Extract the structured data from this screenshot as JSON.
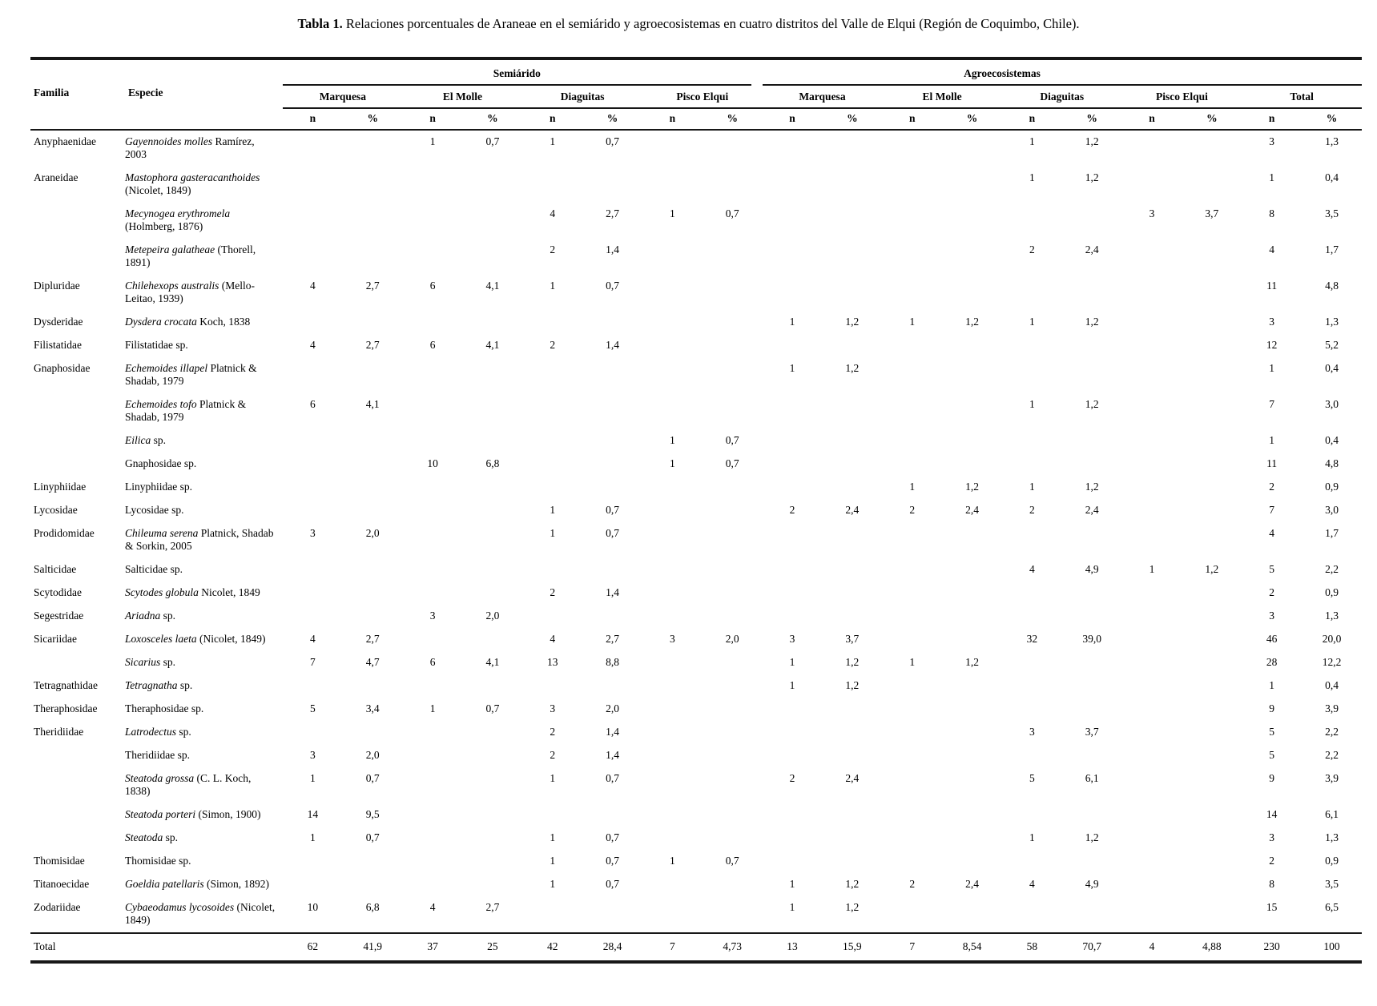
{
  "title": {
    "label_bold": "Tabla 1.",
    "text": " Relaciones porcentuales de Araneae en el semiárido y agroecosistemas en cuatro distritos del Valle de Elqui (Región de Coquimbo, Chile)."
  },
  "header": {
    "familia": "Familia",
    "especie": "Especie",
    "group_semiarido": "Semiárido",
    "group_agro": "Agroecosistemas",
    "districts": [
      "Marquesa",
      "El Molle",
      "Diaguitas",
      "Pisco Elqui",
      "Marquesa",
      "El Molle",
      "Diaguitas",
      "Pisco Elqui",
      "Total"
    ],
    "n": "n",
    "pct": "%"
  },
  "rows": [
    {
      "familia": "Anyphaenidae",
      "sp_it": "Gayennoides molles",
      "sp_reg": " Ramírez, 2003",
      "values": [
        "",
        "",
        "1",
        "0,7",
        "1",
        "0,7",
        "",
        "",
        "",
        "",
        "",
        "",
        "1",
        "1,2",
        "",
        "",
        "3",
        "1,3"
      ]
    },
    {
      "familia": "Araneidae",
      "sp_it": "Mastophora gasteracanthoides",
      "sp_reg": " (Nicolet, 1849)",
      "values": [
        "",
        "",
        "",
        "",
        "",
        "",
        "",
        "",
        "",
        "",
        "",
        "",
        "1",
        "1,2",
        "",
        "",
        "1",
        "0,4"
      ]
    },
    {
      "familia": "",
      "sp_it": "Mecynogea erythromela",
      "sp_reg": " (Holmberg, 1876)",
      "values": [
        "",
        "",
        "",
        "",
        "4",
        "2,7",
        "1",
        "0,7",
        "",
        "",
        "",
        "",
        "",
        "",
        "3",
        "3,7",
        "8",
        "3,5"
      ]
    },
    {
      "familia": "",
      "sp_it": "Metepeira galatheae",
      "sp_reg": " (Thorell, 1891)",
      "values": [
        "",
        "",
        "",
        "",
        "2",
        "1,4",
        "",
        "",
        "",
        "",
        "",
        "",
        "2",
        "2,4",
        "",
        "",
        "4",
        "1,7"
      ]
    },
    {
      "familia": "Dipluridae",
      "sp_it": "Chilehexops australis",
      "sp_reg": " (Mello-Leitao, 1939)",
      "values": [
        "4",
        "2,7",
        "6",
        "4,1",
        "1",
        "0,7",
        "",
        "",
        "",
        "",
        "",
        "",
        "",
        "",
        "",
        "",
        "11",
        "4,8"
      ]
    },
    {
      "familia": "Dysderidae",
      "sp_it": "Dysdera crocata",
      "sp_reg": " Koch, 1838",
      "values": [
        "",
        "",
        "",
        "",
        "",
        "",
        "",
        "",
        "1",
        "1,2",
        "1",
        "1,2",
        "1",
        "1,2",
        "",
        "",
        "3",
        "1,3"
      ]
    },
    {
      "familia": "Filistatidae",
      "sp_it": "",
      "sp_reg": "Filistatidae sp.",
      "values": [
        "4",
        "2,7",
        "6",
        "4,1",
        "2",
        "1,4",
        "",
        "",
        "",
        "",
        "",
        "",
        "",
        "",
        "",
        "",
        "12",
        "5,2"
      ]
    },
    {
      "familia": "Gnaphosidae",
      "sp_it": "Echemoides illapel",
      "sp_reg": " Platnick & Shadab, 1979",
      "values": [
        "",
        "",
        "",
        "",
        "",
        "",
        "",
        "",
        "1",
        "1,2",
        "",
        "",
        "",
        "",
        "",
        "",
        "1",
        "0,4"
      ]
    },
    {
      "familia": "",
      "sp_it": "Echemoides tofo",
      "sp_reg": " Platnick & Shadab, 1979",
      "values": [
        "6",
        "4,1",
        "",
        "",
        "",
        "",
        "",
        "",
        "",
        "",
        "",
        "",
        "1",
        "1,2",
        "",
        "",
        "7",
        "3,0"
      ]
    },
    {
      "familia": "",
      "sp_it": "Eilica",
      "sp_reg": " sp.",
      "values": [
        "",
        "",
        "",
        "",
        "",
        "",
        "1",
        "0,7",
        "",
        "",
        "",
        "",
        "",
        "",
        "",
        "",
        "1",
        "0,4"
      ]
    },
    {
      "familia": "",
      "sp_it": "",
      "sp_reg": "Gnaphosidae sp.",
      "values": [
        "",
        "",
        "10",
        "6,8",
        "",
        "",
        "1",
        "0,7",
        "",
        "",
        "",
        "",
        "",
        "",
        "",
        "",
        "11",
        "4,8"
      ]
    },
    {
      "familia": "Linyphiidae",
      "sp_it": "",
      "sp_reg": "Linyphiidae sp.",
      "values": [
        "",
        "",
        "",
        "",
        "",
        "",
        "",
        "",
        "",
        "",
        "1",
        "1,2",
        "1",
        "1,2",
        "",
        "",
        "2",
        "0,9"
      ]
    },
    {
      "familia": "Lycosidae",
      "sp_it": "",
      "sp_reg": "Lycosidae sp.",
      "values": [
        "",
        "",
        "",
        "",
        "1",
        "0,7",
        "",
        "",
        "2",
        "2,4",
        "2",
        "2,4",
        "2",
        "2,4",
        "",
        "",
        "7",
        "3,0"
      ]
    },
    {
      "familia": "Prodidomidae",
      "sp_it": "Chileuma serena",
      "sp_reg": " Platnick, Shadab & Sorkin, 2005",
      "values": [
        "3",
        "2,0",
        "",
        "",
        "1",
        "0,7",
        "",
        "",
        "",
        "",
        "",
        "",
        "",
        "",
        "",
        "",
        "4",
        "1,7"
      ]
    },
    {
      "familia": "Salticidae",
      "sp_it": "",
      "sp_reg": "Salticidae sp.",
      "values": [
        "",
        "",
        "",
        "",
        "",
        "",
        "",
        "",
        "",
        "",
        "",
        "",
        "4",
        "4,9",
        "1",
        "1,2",
        "5",
        "2,2"
      ]
    },
    {
      "familia": "Scytodidae",
      "sp_it": "Scytodes globula",
      "sp_reg": " Nicolet, 1849",
      "values": [
        "",
        "",
        "",
        "",
        "2",
        "1,4",
        "",
        "",
        "",
        "",
        "",
        "",
        "",
        "",
        "",
        "",
        "2",
        "0,9"
      ]
    },
    {
      "familia": "Segestridae",
      "sp_it": "Ariadna",
      "sp_reg": " sp.",
      "values": [
        "",
        "",
        "3",
        "2,0",
        "",
        "",
        "",
        "",
        "",
        "",
        "",
        "",
        "",
        "",
        "",
        "",
        "3",
        "1,3"
      ]
    },
    {
      "familia": "Sicariidae",
      "sp_it": "Loxosceles laeta",
      "sp_reg": " (Nicolet, 1849)",
      "values": [
        "4",
        "2,7",
        "",
        "",
        "4",
        "2,7",
        "3",
        "2,0",
        "3",
        "3,7",
        "",
        "",
        "32",
        "39,0",
        "",
        "",
        "46",
        "20,0"
      ]
    },
    {
      "familia": "",
      "sp_it": "Sicarius",
      "sp_reg": " sp.",
      "values": [
        "7",
        "4,7",
        "6",
        "4,1",
        "13",
        "8,8",
        "",
        "",
        "1",
        "1,2",
        "1",
        "1,2",
        "",
        "",
        "",
        "",
        "28",
        "12,2"
      ]
    },
    {
      "familia": "Tetragnathidae",
      "sp_it": "Tetragnatha",
      "sp_reg": " sp.",
      "values": [
        "",
        "",
        "",
        "",
        "",
        "",
        "",
        "",
        "1",
        "1,2",
        "",
        "",
        "",
        "",
        "",
        "",
        "1",
        "0,4"
      ]
    },
    {
      "familia": "Theraphosidae",
      "sp_it": "",
      "sp_reg": "Theraphosidae sp.",
      "values": [
        "5",
        "3,4",
        "1",
        "0,7",
        "3",
        "2,0",
        "",
        "",
        "",
        "",
        "",
        "",
        "",
        "",
        "",
        "",
        "9",
        "3,9"
      ]
    },
    {
      "familia": "Theridiidae",
      "sp_it": "Latrodectus",
      "sp_reg": " sp.",
      "values": [
        "",
        "",
        "",
        "",
        "2",
        "1,4",
        "",
        "",
        "",
        "",
        "",
        "",
        "3",
        "3,7",
        "",
        "",
        "5",
        "2,2"
      ]
    },
    {
      "familia": "",
      "sp_it": "",
      "sp_reg": "Theridiidae sp.",
      "values": [
        "3",
        "2,0",
        "",
        "",
        "2",
        "1,4",
        "",
        "",
        "",
        "",
        "",
        "",
        "",
        "",
        "",
        "",
        "5",
        "2,2"
      ]
    },
    {
      "familia": "",
      "sp_it": "Steatoda grossa",
      "sp_reg": " (C. L. Koch, 1838)",
      "values": [
        "1",
        "0,7",
        "",
        "",
        "1",
        "0,7",
        "",
        "",
        "2",
        "2,4",
        "",
        "",
        "5",
        "6,1",
        "",
        "",
        "9",
        "3,9"
      ]
    },
    {
      "familia": "",
      "sp_it": "Steatoda porteri",
      "sp_reg": " (Simon, 1900)",
      "values": [
        "14",
        "9,5",
        "",
        "",
        "",
        "",
        "",
        "",
        "",
        "",
        "",
        "",
        "",
        "",
        "",
        "",
        "14",
        "6,1"
      ]
    },
    {
      "familia": "",
      "sp_it": "Steatoda",
      "sp_reg": " sp.",
      "values": [
        "1",
        "0,7",
        "",
        "",
        "1",
        "0,7",
        "",
        "",
        "",
        "",
        "",
        "",
        "1",
        "1,2",
        "",
        "",
        "3",
        "1,3"
      ]
    },
    {
      "familia": "Thomisidae",
      "sp_it": "",
      "sp_reg": "Thomisidae sp.",
      "values": [
        "",
        "",
        "",
        "",
        "1",
        "0,7",
        "1",
        "0,7",
        "",
        "",
        "",
        "",
        "",
        "",
        "",
        "",
        "2",
        "0,9"
      ]
    },
    {
      "familia": "Titanoecidae",
      "sp_it": "Goeldia patellaris",
      "sp_reg": " (Simon, 1892)",
      "values": [
        "",
        "",
        "",
        "",
        "1",
        "0,7",
        "",
        "",
        "1",
        "1,2",
        "2",
        "2,4",
        "4",
        "4,9",
        "",
        "",
        "8",
        "3,5"
      ]
    },
    {
      "familia": "Zodariidae",
      "sp_it": "Cybaeodamus lycosoides",
      "sp_reg": " (Nicolet, 1849)",
      "values": [
        "10",
        "6,8",
        "4",
        "2,7",
        "",
        "",
        "",
        "",
        "1",
        "1,2",
        "",
        "",
        "",
        "",
        "",
        "",
        "15",
        "6,5"
      ]
    }
  ],
  "total_row": {
    "label": "Total",
    "values": [
      "62",
      "41,9",
      "37",
      "25",
      "42",
      "28,4",
      "7",
      "4,73",
      "13",
      "15,9",
      "7",
      "8,54",
      "58",
      "70,7",
      "4",
      "4,88",
      "230",
      "100"
    ]
  }
}
